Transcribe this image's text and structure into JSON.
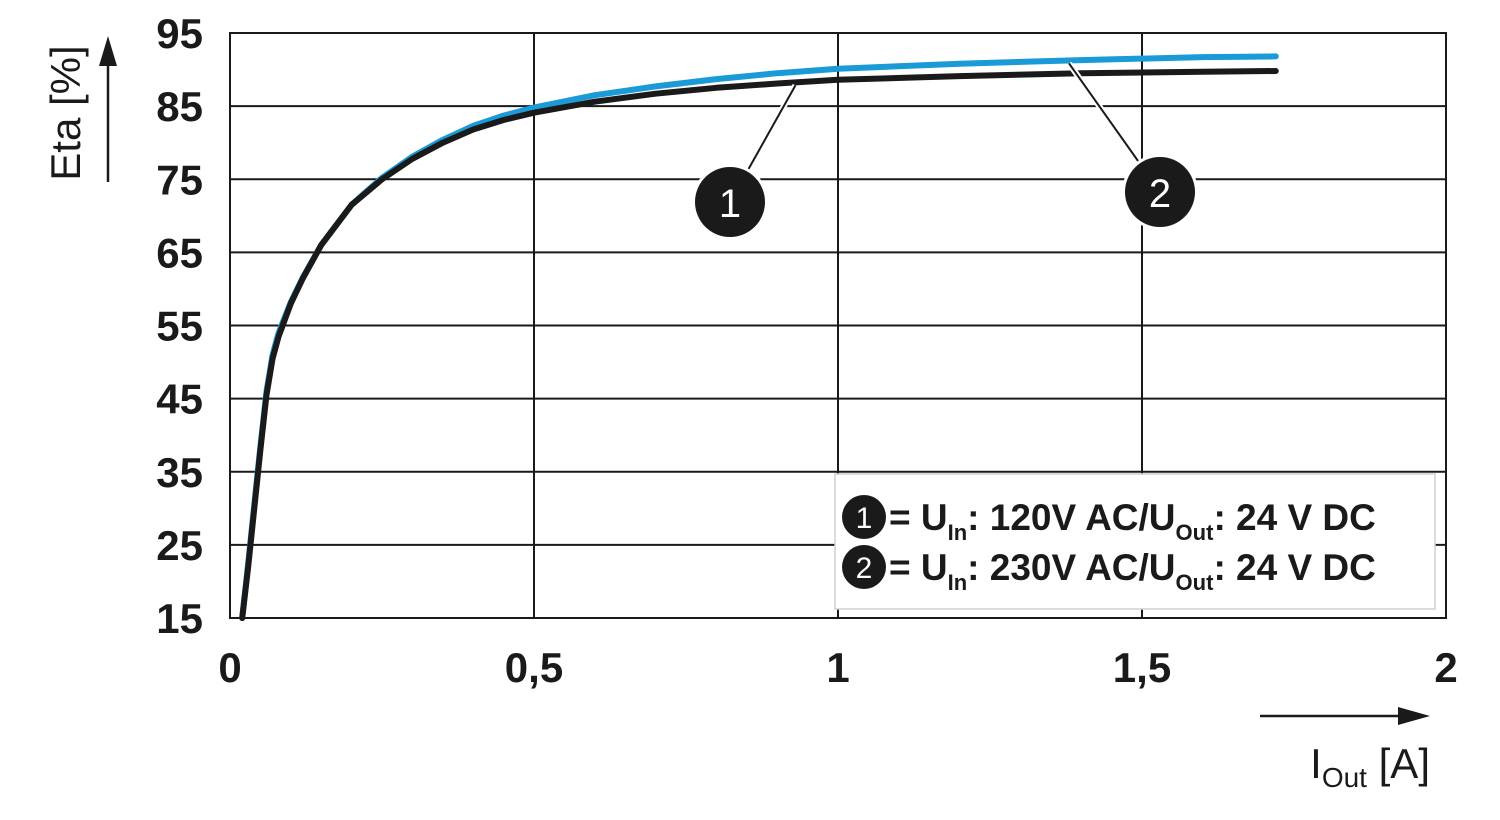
{
  "chart_data": {
    "type": "line",
    "ylabel": "Eta [%]",
    "xlabel_main": "I",
    "xlabel_sub": "Out",
    "xlabel_unit": " [A]",
    "xlim": [
      0,
      2
    ],
    "ylim": [
      15,
      95
    ],
    "xticks": [
      0,
      0.5,
      1,
      1.5,
      2
    ],
    "xtick_labels": [
      "0",
      "0,5",
      "1",
      "1,5",
      "2"
    ],
    "yticks": [
      15,
      25,
      35,
      45,
      55,
      65,
      75,
      85,
      95
    ],
    "ytick_labels": [
      "15",
      "25",
      "35",
      "45",
      "55",
      "65",
      "75",
      "85",
      "95"
    ],
    "grid": true,
    "legend_position": "bottom-right",
    "series": [
      {
        "marker": "1",
        "color": "#1a1a1a",
        "legend": {
          "prefix": "= U",
          "sub1": "In",
          "mid": ": 120V AC/U",
          "sub2": "Out",
          "suffix": ": 24 V DC"
        },
        "x": [
          0.02,
          0.03,
          0.04,
          0.05,
          0.06,
          0.07,
          0.08,
          0.1,
          0.12,
          0.15,
          0.2,
          0.25,
          0.3,
          0.35,
          0.4,
          0.45,
          0.5,
          0.6,
          0.7,
          0.8,
          0.9,
          1.0,
          1.2,
          1.4,
          1.6,
          1.72
        ],
        "values": [
          15,
          22,
          30,
          38,
          45.5,
          50.5,
          53.5,
          58,
          61.5,
          66,
          71.5,
          75,
          77.8,
          80,
          81.8,
          83.1,
          84.1,
          85.6,
          86.7,
          87.5,
          88.1,
          88.6,
          89.1,
          89.5,
          89.7,
          89.8
        ]
      },
      {
        "marker": "2",
        "color": "#1a9ad6",
        "legend": {
          "prefix": "= U",
          "sub1": "In",
          "mid": ": 230V AC/U",
          "sub2": "Out",
          "suffix": ": 24 V DC"
        },
        "x": [
          0.02,
          0.03,
          0.04,
          0.05,
          0.06,
          0.07,
          0.08,
          0.1,
          0.12,
          0.15,
          0.2,
          0.25,
          0.3,
          0.35,
          0.4,
          0.45,
          0.5,
          0.6,
          0.7,
          0.8,
          0.9,
          1.0,
          1.2,
          1.4,
          1.6,
          1.72
        ],
        "values": [
          15,
          22.5,
          30.5,
          38.5,
          46,
          51,
          54,
          58.2,
          61.6,
          66,
          71.5,
          75.2,
          78.1,
          80.4,
          82.3,
          83.7,
          84.8,
          86.5,
          87.7,
          88.7,
          89.5,
          90.1,
          90.8,
          91.3,
          91.7,
          91.8
        ]
      }
    ]
  }
}
